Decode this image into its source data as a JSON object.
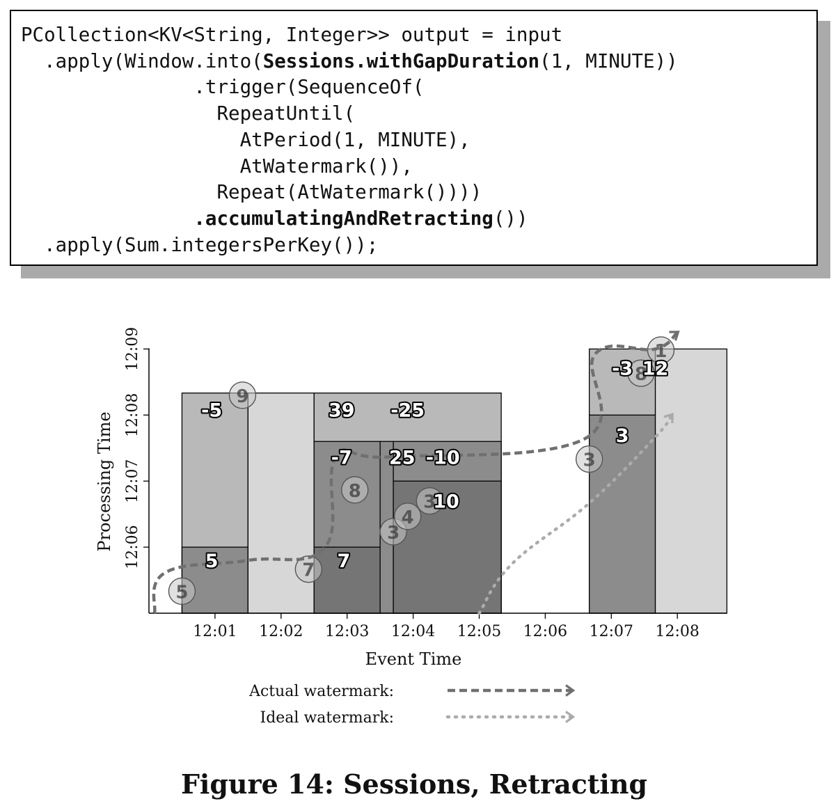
{
  "code": {
    "lines": [
      [
        "PCollection<KV<String, Integer>> output = input"
      ],
      [
        "  .apply(Window.into(",
        "Sessions.withGapDuration",
        "(1, MINUTE))"
      ],
      [
        "               .trigger(SequenceOf("
      ],
      [
        "                 RepeatUntil("
      ],
      [
        "                   AtPeriod(1, MINUTE),"
      ],
      [
        "                   AtWatermark()),"
      ],
      [
        "                 Repeat(AtWatermark())))"
      ],
      [
        "               ",
        ".accumulatingAndRetracting",
        "())"
      ],
      [
        "  .apply(Sum.integersPerKey());"
      ]
    ]
  },
  "chart_data": {
    "type": "scatter",
    "xlabel": "Event Time",
    "ylabel": "Processing Time",
    "x_ticks": [
      "12:01",
      "12:02",
      "12:03",
      "12:04",
      "12:05",
      "12:06",
      "12:07",
      "12:08"
    ],
    "y_ticks": [
      "12:06",
      "12:07",
      "12:08",
      "12:09"
    ],
    "x_range": [
      "12:00",
      "12:08:45"
    ],
    "y_range": [
      "12:05",
      "12:09"
    ],
    "colors": {
      "pane_light": "#d7d7d7",
      "pane_mid": "#b9b9b9",
      "pane_dark": "#8c8c8c",
      "pane_darker": "#757575",
      "actual_watermark": "#707070",
      "ideal_watermark": "#ababab"
    },
    "panes": [
      {
        "x0": "12:00:30",
        "x1": "12:01:30",
        "y0": "12:05",
        "y1": "12:08:20",
        "shade": "pane_mid"
      },
      {
        "x0": "12:00:30",
        "x1": "12:01:30",
        "y0": "12:05",
        "y1": "12:06",
        "shade": "pane_dark"
      },
      {
        "x0": "12:01:30",
        "x1": "12:02:30",
        "y0": "12:05",
        "y1": "12:08:20",
        "shade": "pane_light"
      },
      {
        "x0": "12:02:30",
        "x1": "12:05:20",
        "y0": "12:05",
        "y1": "12:08:20",
        "shade": "pane_mid"
      },
      {
        "x0": "12:02:30",
        "x1": "12:03:30",
        "y0": "12:05",
        "y1": "12:07:36",
        "shade": "pane_dark"
      },
      {
        "x0": "12:02:30",
        "x1": "12:03:30",
        "y0": "12:05",
        "y1": "12:06",
        "shade": "pane_darker"
      },
      {
        "x0": "12:03:30",
        "x1": "12:03:42",
        "y0": "12:05",
        "y1": "12:07:36",
        "shade": "pane_dark"
      },
      {
        "x0": "12:03:42",
        "x1": "12:05:20",
        "y0": "12:05",
        "y1": "12:07:36",
        "shade": "pane_dark"
      },
      {
        "x0": "12:03:42",
        "x1": "12:05:20",
        "y0": "12:05",
        "y1": "12:07:00",
        "shade": "pane_darker"
      },
      {
        "x0": "12:06:40",
        "x1": "12:07:40",
        "y0": "12:05",
        "y1": "12:09:00",
        "shade": "pane_mid"
      },
      {
        "x0": "12:06:40",
        "x1": "12:07:40",
        "y0": "12:05",
        "y1": "12:08:00",
        "shade": "pane_dark"
      },
      {
        "x0": "12:07:40",
        "x1": "12:08:45",
        "y0": "12:05",
        "y1": "12:09:00",
        "shade": "pane_light"
      }
    ],
    "points": [
      {
        "value": 5,
        "x": "12:00:30",
        "y": "12:05:20"
      },
      {
        "value": 9,
        "x": "12:01:25",
        "y": "12:08:18"
      },
      {
        "value": 7,
        "x": "12:02:25",
        "y": "12:05:40"
      },
      {
        "value": 8,
        "x": "12:03:07",
        "y": "12:06:52"
      },
      {
        "value": 3,
        "x": "12:03:42",
        "y": "12:06:14"
      },
      {
        "value": 4,
        "x": "12:03:55",
        "y": "12:06:28"
      },
      {
        "value": 3,
        "x": "12:04:15",
        "y": "12:06:42"
      },
      {
        "value": 3,
        "x": "12:06:40",
        "y": "12:07:20"
      },
      {
        "value": 8,
        "x": "12:07:27",
        "y": "12:08:38"
      },
      {
        "value": 1,
        "x": "12:07:45",
        "y": "12:08:59"
      }
    ],
    "results": [
      {
        "text": "-5",
        "x": "12:00:57",
        "y": "12:08:05"
      },
      {
        "text": "5",
        "x": "12:00:57",
        "y": "12:05:48"
      },
      {
        "text": "39",
        "x": "12:02:55",
        "y": "12:08:05"
      },
      {
        "text": "-25",
        "x": "12:03:55",
        "y": "12:08:05"
      },
      {
        "text": "-7",
        "x": "12:02:55",
        "y": "12:07:22"
      },
      {
        "text": "25",
        "x": "12:03:50",
        "y": "12:07:22"
      },
      {
        "text": "-10",
        "x": "12:04:27",
        "y": "12:07:22"
      },
      {
        "text": "7",
        "x": "12:02:57",
        "y": "12:05:48"
      },
      {
        "text": "10",
        "x": "12:04:30",
        "y": "12:06:42"
      },
      {
        "text": "-3",
        "x": "12:07:10",
        "y": "12:08:43"
      },
      {
        "text": "12",
        "x": "12:07:40",
        "y": "12:08:43"
      },
      {
        "text": "3",
        "x": "12:07:10",
        "y": "12:07:42"
      }
    ],
    "actual_watermark": [
      {
        "x": "12:00:05",
        "y": "12:05"
      },
      {
        "x": "12:00:15",
        "y": "12:05:37"
      },
      {
        "x": "12:01:30",
        "y": "12:05:48"
      },
      {
        "x": "12:02:40",
        "y": "12:06:00"
      },
      {
        "x": "12:02:50",
        "y": "12:07:22"
      },
      {
        "x": "12:03:40",
        "y": "12:07:22"
      },
      {
        "x": "12:06:35",
        "y": "12:07:38"
      },
      {
        "x": "12:06:45",
        "y": "12:08:55"
      },
      {
        "x": "12:07:40",
        "y": "12:09:00"
      },
      {
        "x": "12:08:00",
        "y": "12:09:15"
      }
    ],
    "ideal_watermark": [
      {
        "x": "12:05:00",
        "y": "12:05:00"
      },
      {
        "x": "12:05:30",
        "y": "12:05:45"
      },
      {
        "x": "12:06:40",
        "y": "12:06:40"
      },
      {
        "x": "12:07:40",
        "y": "12:07:40"
      },
      {
        "x": "12:07:55",
        "y": "12:08:00"
      }
    ],
    "legend": {
      "placement": "bottom",
      "items": [
        {
          "label": "Actual watermark:",
          "style": "dashed",
          "color": "actual_watermark"
        },
        {
          "label": "Ideal watermark:",
          "style": "dotted",
          "color": "ideal_watermark"
        }
      ]
    }
  },
  "caption": "Figure 14: Sessions, Retracting"
}
